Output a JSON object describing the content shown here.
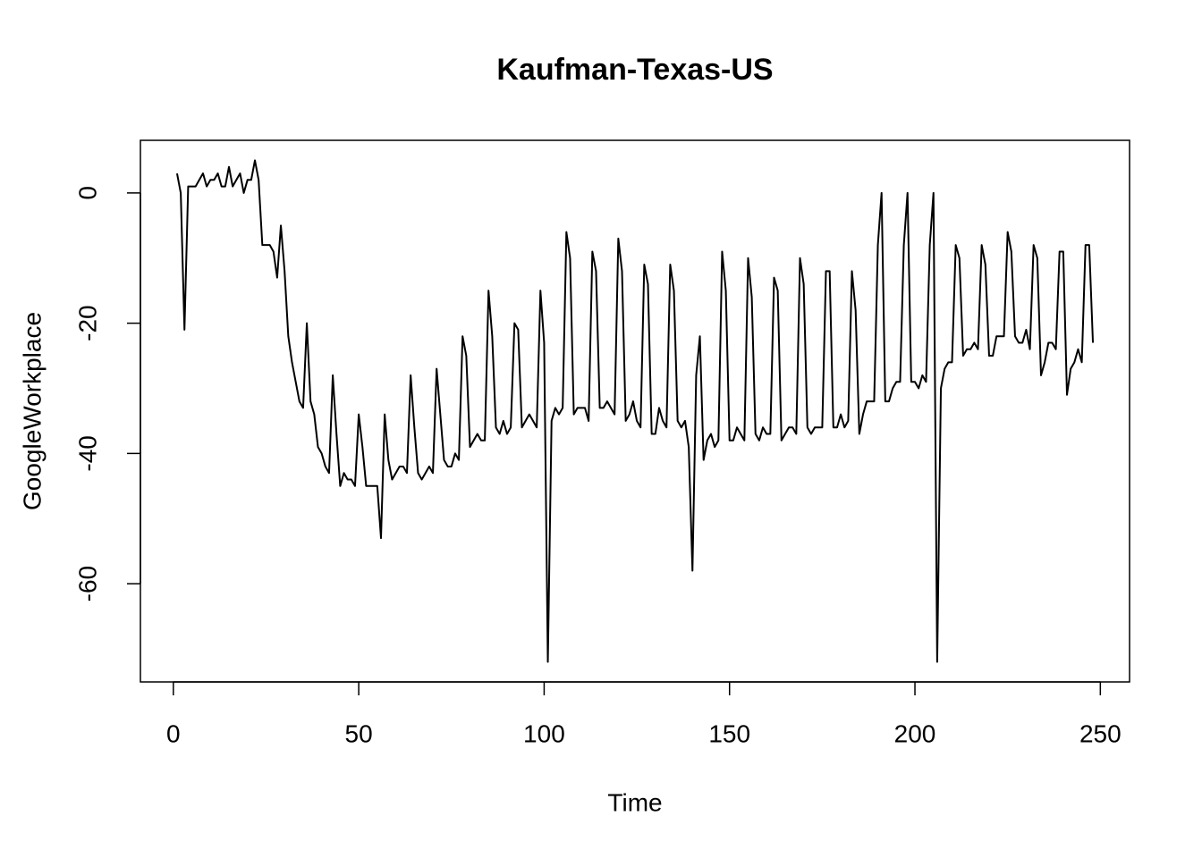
{
  "chart_data": {
    "type": "line",
    "title": "Kaufman-Texas-US",
    "xlabel": "Time",
    "ylabel": "GoogleWorkplace",
    "x": [
      1,
      2,
      3,
      4,
      5,
      6,
      7,
      8,
      9,
      10,
      11,
      12,
      13,
      14,
      15,
      16,
      17,
      18,
      19,
      20,
      21,
      22,
      23,
      24,
      25,
      26,
      27,
      28,
      29,
      30,
      31,
      32,
      33,
      34,
      35,
      36,
      37,
      38,
      39,
      40,
      41,
      42,
      43,
      44,
      45,
      46,
      47,
      48,
      49,
      50,
      51,
      52,
      53,
      54,
      55,
      56,
      57,
      58,
      59,
      60,
      61,
      62,
      63,
      64,
      65,
      66,
      67,
      68,
      69,
      70,
      71,
      72,
      73,
      74,
      75,
      76,
      77,
      78,
      79,
      80,
      81,
      82,
      83,
      84,
      85,
      86,
      87,
      88,
      89,
      90,
      91,
      92,
      93,
      94,
      95,
      96,
      97,
      98,
      99,
      100,
      101,
      102,
      103,
      104,
      105,
      106,
      107,
      108,
      109,
      110,
      111,
      112,
      113,
      114,
      115,
      116,
      117,
      118,
      119,
      120,
      121,
      122,
      123,
      124,
      125,
      126,
      127,
      128,
      129,
      130,
      131,
      132,
      133,
      134,
      135,
      136,
      137,
      138,
      139,
      140,
      141,
      142,
      143,
      144,
      145,
      146,
      147,
      148,
      149,
      150,
      151,
      152,
      153,
      154,
      155,
      156,
      157,
      158,
      159,
      160,
      161,
      162,
      163,
      164,
      165,
      166,
      167,
      168,
      169,
      170,
      171,
      172,
      173,
      174,
      175,
      176,
      177,
      178,
      179,
      180,
      181,
      182,
      183,
      184,
      185,
      186,
      187,
      188,
      189,
      190,
      191,
      192,
      193,
      194,
      195,
      196,
      197,
      198,
      199,
      200,
      201,
      202,
      203,
      204,
      205,
      206,
      207,
      208,
      209,
      210,
      211,
      212,
      213,
      214,
      215,
      216,
      217,
      218,
      219,
      220,
      221,
      222,
      223,
      224,
      225,
      226,
      227,
      228,
      229,
      230,
      231,
      232,
      233,
      234,
      235,
      236,
      237,
      238,
      239,
      240,
      241,
      242,
      243,
      244,
      245,
      246,
      247,
      248
    ],
    "series": [
      {
        "name": "GoogleWorkplace",
        "color": "#000000",
        "values": [
          3,
          0,
          -21,
          1,
          1,
          1,
          2,
          3,
          1,
          2,
          2,
          3,
          1,
          1,
          4,
          1,
          2,
          3,
          0,
          2,
          2,
          5,
          2,
          -8,
          -8,
          -8,
          -9,
          -13,
          -5,
          -12,
          -22,
          -26,
          -29,
          -32,
          -33,
          -20,
          -32,
          -34,
          -39,
          -40,
          -42,
          -43,
          -28,
          -37,
          -45,
          -43,
          -44,
          -44,
          -45,
          -34,
          -39,
          -45,
          -45,
          -45,
          -45,
          -53,
          -34,
          -41,
          -44,
          -43,
          -42,
          -42,
          -43,
          -28,
          -36,
          -43,
          -44,
          -43,
          -42,
          -43,
          -27,
          -34,
          -41,
          -42,
          -42,
          -40,
          -41,
          -22,
          -25,
          -39,
          -38,
          -37,
          -38,
          -38,
          -15,
          -22,
          -36,
          -37,
          -35,
          -37,
          -36,
          -20,
          -21,
          -36,
          -35,
          -34,
          -35,
          -36,
          -15,
          -23,
          -72,
          -35,
          -33,
          -34,
          -33,
          -6,
          -10,
          -34,
          -33,
          -33,
          -33,
          -35,
          -9,
          -12,
          -33,
          -33,
          -32,
          -33,
          -34,
          -7,
          -12,
          -35,
          -34,
          -32,
          -35,
          -36,
          -11,
          -14,
          -37,
          -37,
          -33,
          -35,
          -36,
          -11,
          -15,
          -35,
          -36,
          -35,
          -39,
          -58,
          -28,
          -22,
          -41,
          -38,
          -37,
          -39,
          -38,
          -9,
          -15,
          -38,
          -38,
          -36,
          -37,
          -38,
          -10,
          -16,
          -37,
          -38,
          -36,
          -37,
          -37,
          -13,
          -15,
          -38,
          -37,
          -36,
          -36,
          -37,
          -10,
          -14,
          -36,
          -37,
          -36,
          -36,
          -36,
          -12,
          -12,
          -36,
          -36,
          -34,
          -36,
          -35,
          -12,
          -18,
          -37,
          -34,
          -32,
          -32,
          -32,
          -8,
          0,
          -32,
          -32,
          -30,
          -29,
          -29,
          -8,
          0,
          -29,
          -29,
          -30,
          -28,
          -29,
          -8,
          0,
          -72,
          -30,
          -27,
          -26,
          -26,
          -8,
          -10,
          -25,
          -24,
          -24,
          -23,
          -24,
          -8,
          -11,
          -25,
          -25,
          -22,
          -22,
          -22,
          -6,
          -9,
          -22,
          -23,
          -23,
          -21,
          -24,
          -8,
          -10,
          -28,
          -26,
          -23,
          -23,
          -24,
          -9,
          -9,
          -31,
          -27,
          -26,
          -24,
          -26,
          -8,
          -8,
          -23
        ]
      }
    ],
    "xlim": [
      -8.88,
      257.88
    ],
    "ylim": [
      -75.08,
      8.08
    ],
    "xticks": [
      0,
      50,
      100,
      150,
      200,
      250
    ],
    "yticks": [
      -60,
      -40,
      -20,
      0
    ]
  }
}
